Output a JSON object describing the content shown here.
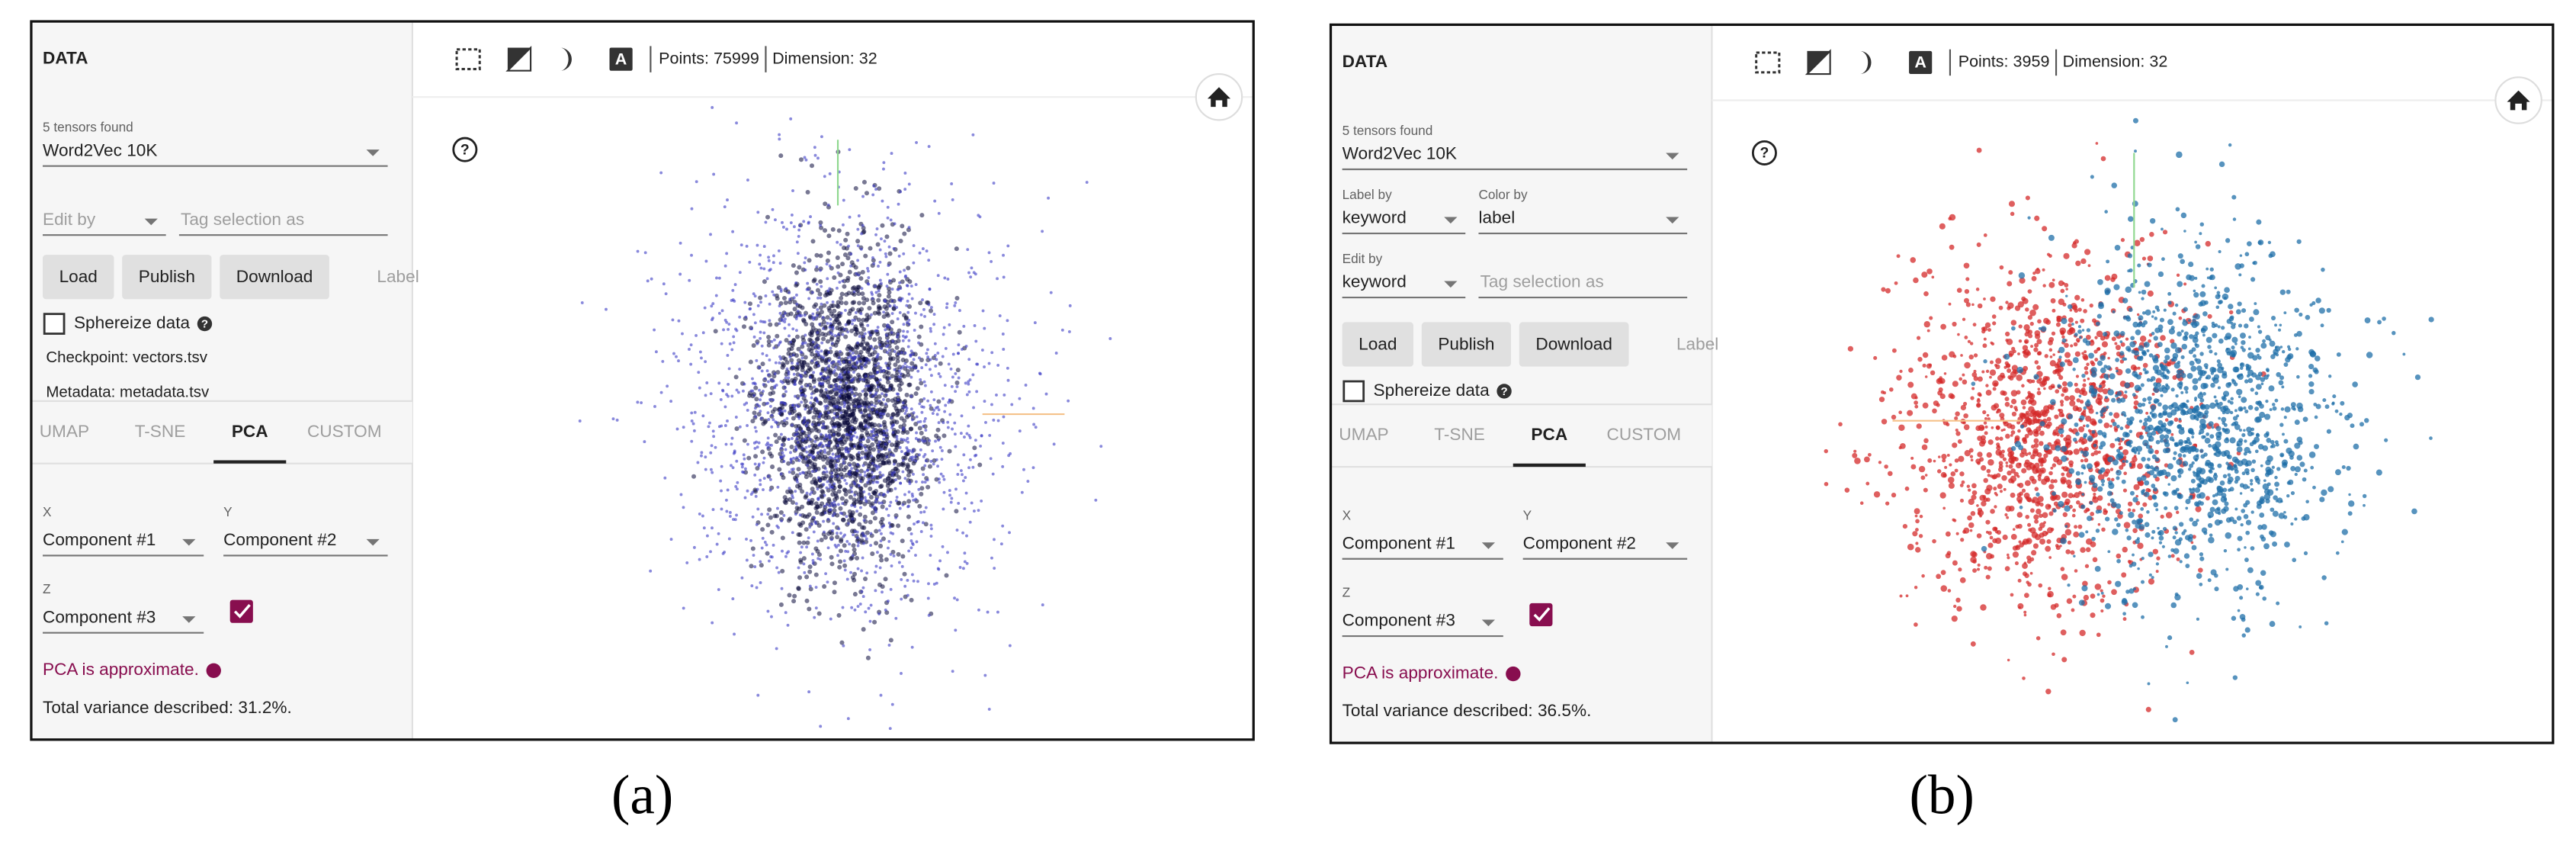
{
  "panels": [
    {
      "caption": "(a)",
      "points": "Points: 75999",
      "dimension": "Dimension: 32",
      "data_header": "DATA",
      "tensors_label": "5 tensors found",
      "tensor": "Word2Vec 10K",
      "field_rows": [
        [
          {
            "value": "Edit by"
          }
        ]
      ],
      "tag_input": "Tag selection as",
      "buttons": [
        "Load",
        "Publish",
        "Download",
        "Label"
      ],
      "sphereize": "Sphereize data",
      "files": [
        "Checkpoint: vectors.tsv",
        "Metadata: metadata.tsv"
      ],
      "tabs": [
        "UMAP",
        "T-SNE",
        "PCA",
        "CUSTOM"
      ],
      "components": [
        {
          "label": "X",
          "value": "Component #1"
        },
        {
          "label": "Y",
          "value": "Component #2"
        },
        {
          "label": "Z",
          "value": "Component #3"
        }
      ],
      "pca_note": "PCA is approximate.",
      "variance": "Total variance described: 31.2%."
    },
    {
      "caption": "(b)",
      "points": "Points: 3959",
      "dimension": "Dimension: 32",
      "data_header": "DATA",
      "tensors_label": "5 tensors found",
      "tensor": "Word2Vec 10K",
      "field_rows": [
        [
          {
            "label": "Label by",
            "value": "keyword"
          },
          {
            "label": "Color by",
            "value": "label"
          }
        ],
        [
          {
            "label": "Edit by",
            "value": "keyword"
          }
        ]
      ],
      "tag_input": "Tag selection as",
      "buttons": [
        "Load",
        "Publish",
        "Download",
        "Label"
      ],
      "sphereize": "Sphereize data",
      "tabs": [
        "UMAP",
        "T-SNE",
        "PCA",
        "CUSTOM"
      ],
      "components": [
        {
          "label": "X",
          "value": "Component #1"
        },
        {
          "label": "Y",
          "value": "Component #2"
        },
        {
          "label": "Z",
          "value": "Component #3"
        }
      ],
      "pca_note": "PCA is approximate.",
      "variance": "Total variance described: 36.5%."
    }
  ]
}
